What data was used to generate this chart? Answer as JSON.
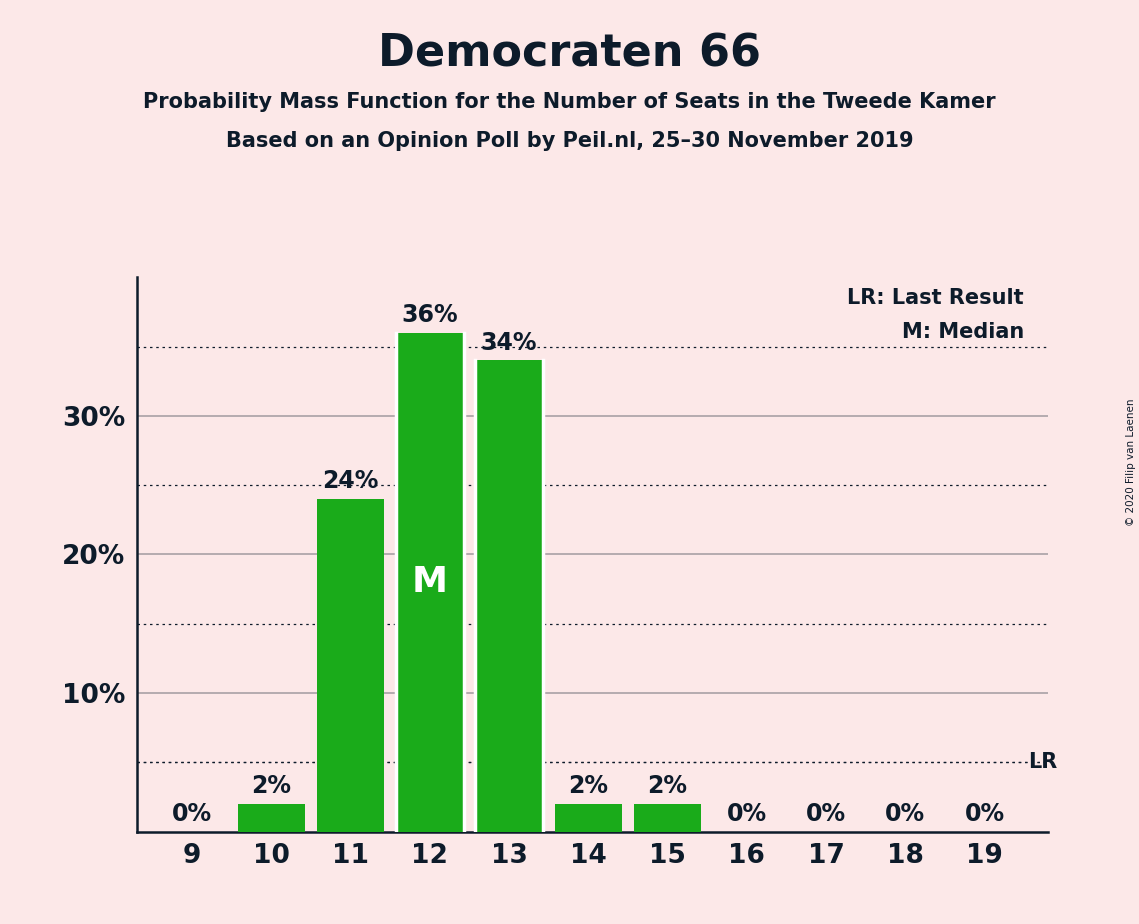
{
  "title": "Democraten 66",
  "subtitle1": "Probability Mass Function for the Number of Seats in the Tweede Kamer",
  "subtitle2": "Based on an Opinion Poll by Peil.nl, 25–30 November 2019",
  "copyright": "© 2020 Filip van Laenen",
  "seats": [
    9,
    10,
    11,
    12,
    13,
    14,
    15,
    16,
    17,
    18,
    19
  ],
  "probabilities": [
    0,
    2,
    24,
    36,
    34,
    2,
    2,
    0,
    0,
    0,
    0
  ],
  "median_seat": 12,
  "lr_value": 5,
  "bar_color": "#1aab1a",
  "background_color": "#fce8e8",
  "text_color": "#0d1b2a",
  "ylim": [
    0,
    40
  ],
  "dotted_lines": [
    5,
    15,
    25,
    35
  ],
  "solid_lines": [
    10,
    20,
    30
  ],
  "bar_width": 0.85,
  "title_fontsize": 32,
  "subtitle_fontsize": 15,
  "tick_fontsize": 19,
  "label_fontsize": 17,
  "legend_fontsize": 15,
  "lr_legend_text": "LR: Last Result",
  "m_legend_text": "M: Median"
}
